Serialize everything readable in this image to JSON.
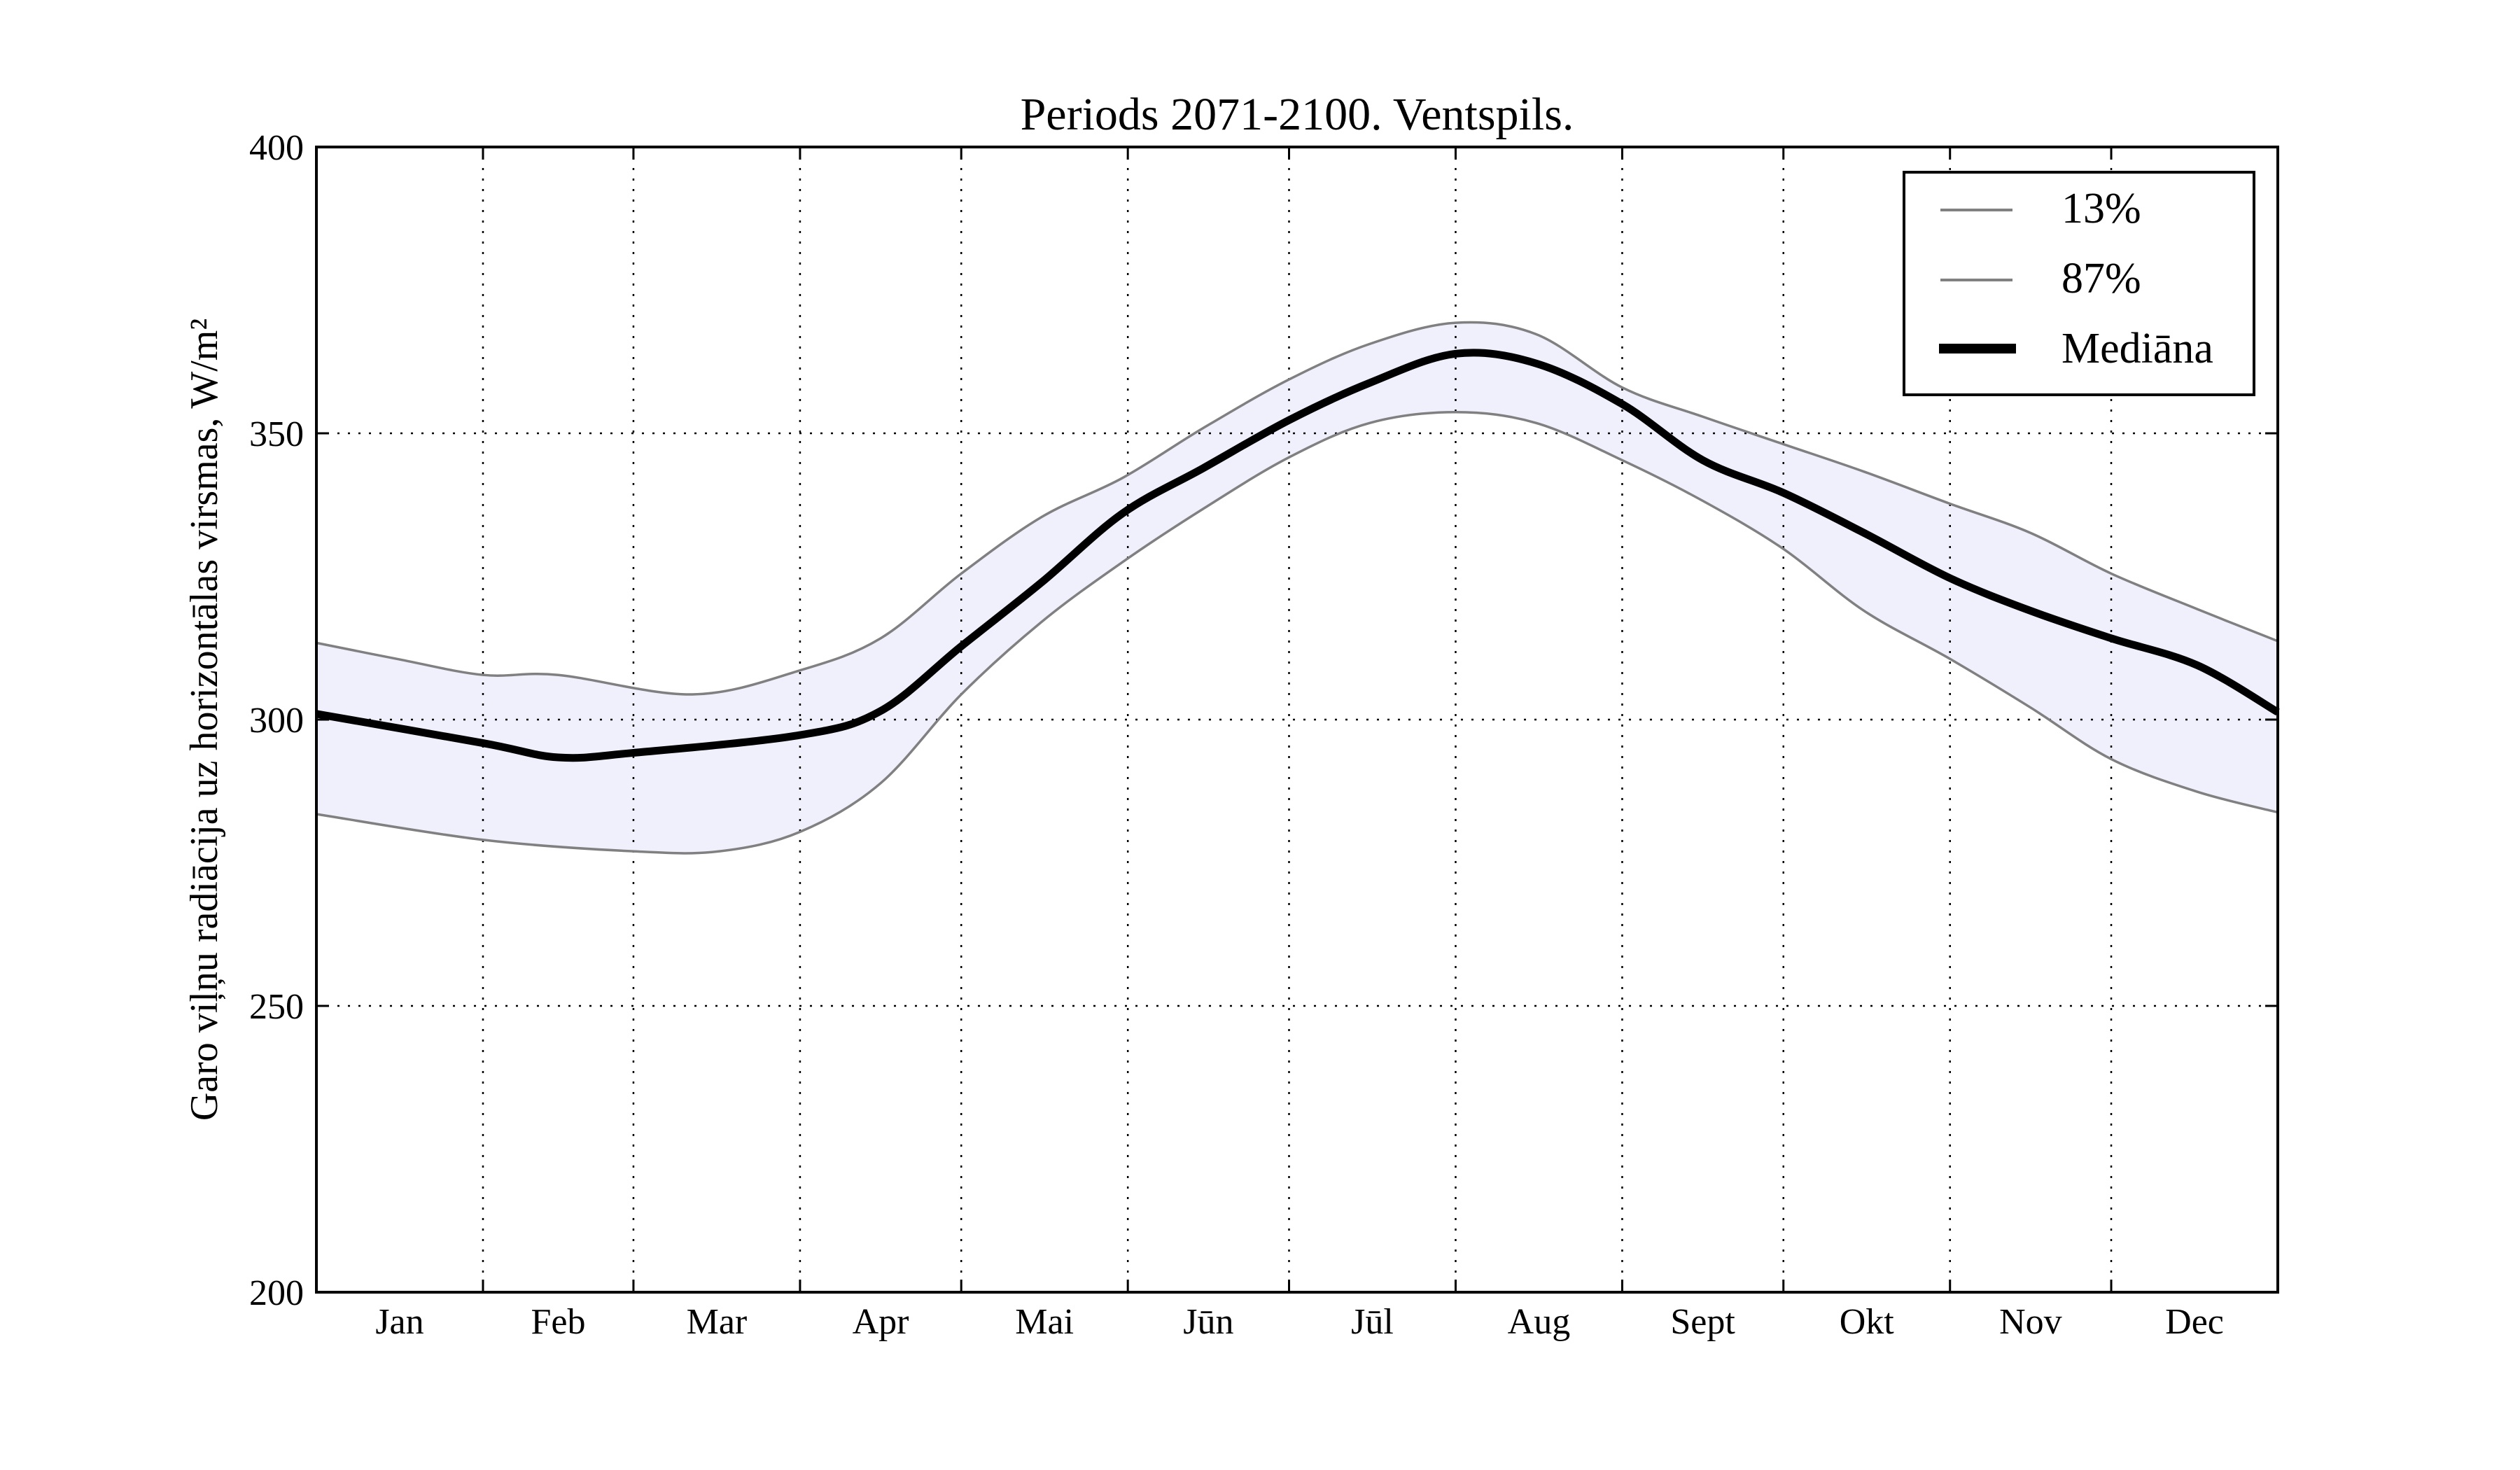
{
  "chart_data": {
    "type": "line",
    "title": "Periods 2071-2100. Ventspils.",
    "xlabel": "",
    "ylabel": "Garo viļņu radiācija uz horizontālas virsmas, W/m²",
    "ylim": [
      200,
      400
    ],
    "xlim": [
      0,
      365
    ],
    "yticks": [
      "200",
      "250",
      "300",
      "350",
      "400"
    ],
    "ytick_values": [
      200,
      250,
      300,
      350,
      400
    ],
    "month_boundaries": [
      31,
      59,
      90,
      120,
      151,
      181,
      212,
      243,
      273,
      304,
      334
    ],
    "month_labels": [
      "Jan",
      "Feb",
      "Mar",
      "Apr",
      "Mai",
      "Jūn",
      "Jūl",
      "Aug",
      "Sept",
      "Okt",
      "Nov",
      "Dec"
    ],
    "grid": true,
    "legend_position": "top-right",
    "colors": {
      "band": "#f0f0fd",
      "percentile": "#808080",
      "median": "#000000"
    },
    "series": [
      {
        "name": "13%",
        "x": [
          0,
          31,
          59,
          75,
          90,
          105,
          120,
          135,
          150,
          165,
          181,
          196,
          212,
          227,
          243,
          258,
          273,
          288,
          304,
          319,
          334,
          350,
          365
        ],
        "values": [
          283.5,
          279,
          277,
          277,
          280.4,
          288.9,
          304.4,
          317.1,
          327.5,
          336.8,
          345.8,
          351.8,
          353.7,
          351.8,
          345.3,
          338.2,
          329.8,
          319,
          310.6,
          302.1,
          293.1,
          287.4,
          283.8
        ]
      },
      {
        "name": "87%",
        "x": [
          0,
          15,
          31,
          45,
          70,
          90,
          105,
          120,
          135,
          150,
          165,
          181,
          196,
          212,
          227,
          243,
          258,
          273,
          288,
          304,
          319,
          334,
          350,
          365
        ],
        "values": [
          313.4,
          310.6,
          307.8,
          307.8,
          304.4,
          308.6,
          314.2,
          325.5,
          335.4,
          342.2,
          350.9,
          359.4,
          365.6,
          369.3,
          367.3,
          358,
          352.9,
          348.1,
          343.3,
          337.7,
          332.6,
          325.5,
          319.3,
          313.7
        ]
      },
      {
        "name": "Mediāna",
        "x": [
          0,
          31,
          45,
          59,
          90,
          105,
          120,
          135,
          150,
          165,
          181,
          196,
          212,
          227,
          243,
          258,
          273,
          288,
          304,
          319,
          334,
          350,
          365
        ],
        "values": [
          301,
          295.9,
          293.4,
          294.2,
          297.3,
          301.5,
          312.8,
          324,
          336,
          343.9,
          352.3,
          358.8,
          363.9,
          362.2,
          355.1,
          345.3,
          339.6,
          332.6,
          324.7,
          319,
          314.2,
          309.5,
          301.3
        ]
      }
    ]
  }
}
